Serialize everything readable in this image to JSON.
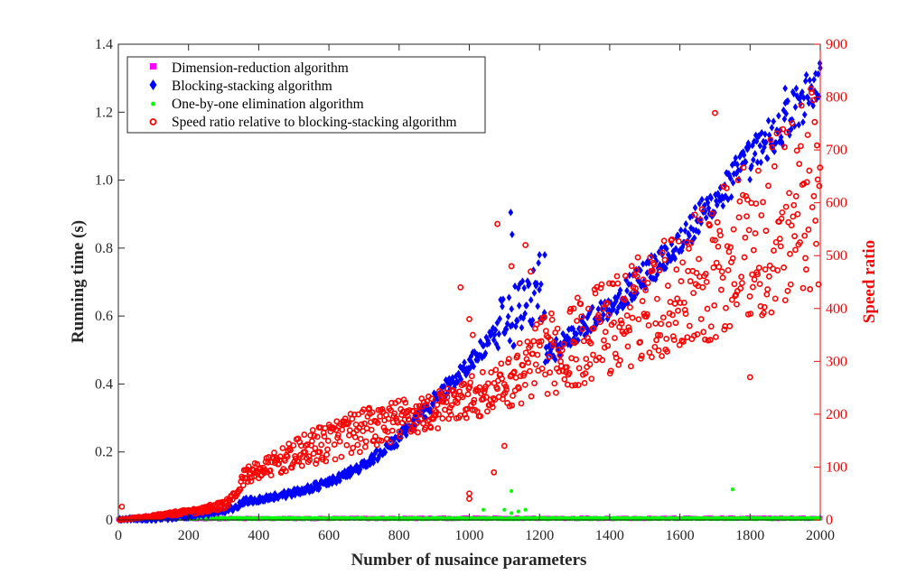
{
  "chart_data": {
    "type": "scatter",
    "xlabel": "Number of nusaince parameters",
    "ylabel_left": "Running time (s)",
    "ylabel_right": "Speed ratio",
    "xlim": [
      0,
      2000
    ],
    "ylim_left": [
      0,
      1.4
    ],
    "ylim_right": [
      0,
      900
    ],
    "x_ticks": [
      "0",
      "200",
      "400",
      "600",
      "800",
      "1000",
      "1200",
      "1400",
      "1600",
      "1800",
      "2000"
    ],
    "y_left_ticks": [
      "0",
      "0.2",
      "0.4",
      "0.6",
      "0.8",
      "1.0",
      "1.2",
      "1.4"
    ],
    "y_right_ticks": [
      "0",
      "100",
      "200",
      "300",
      "400",
      "500",
      "600",
      "700",
      "800",
      "900"
    ],
    "grid": false,
    "legend_position": "top-left",
    "series": [
      {
        "name": "Dimension-reduction algorithm",
        "axis": "left",
        "marker": "square",
        "color": "#ff00ff",
        "trend": [
          [
            0,
            0.004
          ],
          [
            500,
            0.004
          ],
          [
            1000,
            0.005
          ],
          [
            1500,
            0.005
          ],
          [
            2000,
            0.005
          ]
        ]
      },
      {
        "name": "Blocking-stacking algorithm",
        "axis": "left",
        "marker": "diamond",
        "color": "#0000ff",
        "trend": [
          [
            0,
            0.0
          ],
          [
            100,
            0.004
          ],
          [
            200,
            0.012
          ],
          [
            300,
            0.025
          ],
          [
            340,
            0.04
          ],
          [
            360,
            0.055
          ],
          [
            400,
            0.06
          ],
          [
            500,
            0.08
          ],
          [
            600,
            0.11
          ],
          [
            700,
            0.16
          ],
          [
            800,
            0.24
          ],
          [
            900,
            0.35
          ],
          [
            1000,
            0.46
          ],
          [
            1100,
            0.57
          ],
          [
            1200,
            0.68
          ],
          [
            1220,
            0.48
          ],
          [
            1300,
            0.55
          ],
          [
            1400,
            0.63
          ],
          [
            1500,
            0.72
          ],
          [
            1600,
            0.82
          ],
          [
            1700,
            0.94
          ],
          [
            1800,
            1.06
          ],
          [
            1900,
            1.17
          ],
          [
            2000,
            1.3
          ]
        ],
        "outliers": [
          [
            1118,
            0.905
          ],
          [
            1122,
            0.84
          ],
          [
            1200,
            0.78
          ],
          [
            1215,
            0.78
          ],
          [
            2000,
            1.33
          ],
          [
            1900,
            1.27
          ]
        ]
      },
      {
        "name": "One-by-one elimination algorithm",
        "axis": "left",
        "marker": "dot",
        "color": "#00ff00",
        "trend": [
          [
            0,
            0.002
          ],
          [
            1000,
            0.002
          ],
          [
            2000,
            0.002
          ]
        ],
        "outliers": [
          [
            1120,
            0.085
          ],
          [
            1750,
            0.09
          ],
          [
            1100,
            0.03
          ],
          [
            1140,
            0.025
          ],
          [
            1160,
            0.03
          ],
          [
            1040,
            0.03
          ],
          [
            1120,
            0.02
          ]
        ]
      },
      {
        "name": "Speed ratio relative to blocking-stacking algorithm",
        "axis": "right",
        "marker": "circle",
        "color": "#ff0000",
        "upper_band": [
          [
            0,
            0
          ],
          [
            100,
            10
          ],
          [
            200,
            20
          ],
          [
            300,
            35
          ],
          [
            340,
            60
          ],
          [
            360,
            100
          ],
          [
            400,
            110
          ],
          [
            500,
            150
          ],
          [
            600,
            190
          ],
          [
            700,
            210
          ],
          [
            800,
            230
          ],
          [
            900,
            240
          ],
          [
            1000,
            270
          ],
          [
            1100,
            300
          ],
          [
            1200,
            380
          ],
          [
            1300,
            420
          ],
          [
            1400,
            460
          ],
          [
            1500,
            510
          ],
          [
            1600,
            560
          ],
          [
            1700,
            620
          ],
          [
            1800,
            680
          ],
          [
            1900,
            760
          ],
          [
            2000,
            840
          ]
        ],
        "lower_band": [
          [
            0,
            0
          ],
          [
            100,
            5
          ],
          [
            200,
            10
          ],
          [
            300,
            20
          ],
          [
            340,
            45
          ],
          [
            360,
            70
          ],
          [
            400,
            75
          ],
          [
            500,
            95
          ],
          [
            600,
            110
          ],
          [
            700,
            130
          ],
          [
            800,
            150
          ],
          [
            900,
            170
          ],
          [
            1000,
            190
          ],
          [
            1100,
            210
          ],
          [
            1200,
            230
          ],
          [
            1300,
            250
          ],
          [
            1400,
            270
          ],
          [
            1500,
            300
          ],
          [
            1600,
            320
          ],
          [
            1700,
            340
          ],
          [
            1800,
            370
          ],
          [
            1900,
            400
          ],
          [
            2000,
            430
          ]
        ],
        "outliers": [
          [
            10,
            25
          ],
          [
            975,
            440
          ],
          [
            1000,
            380
          ],
          [
            1010,
            350
          ],
          [
            1080,
            560
          ],
          [
            1100,
            140
          ],
          [
            1120,
            480
          ],
          [
            1700,
            770
          ],
          [
            1800,
            270
          ],
          [
            1000,
            50
          ],
          [
            1000,
            40
          ],
          [
            1070,
            90
          ],
          [
            1160,
            520
          ],
          [
            1175,
            470
          ]
        ]
      }
    ]
  }
}
